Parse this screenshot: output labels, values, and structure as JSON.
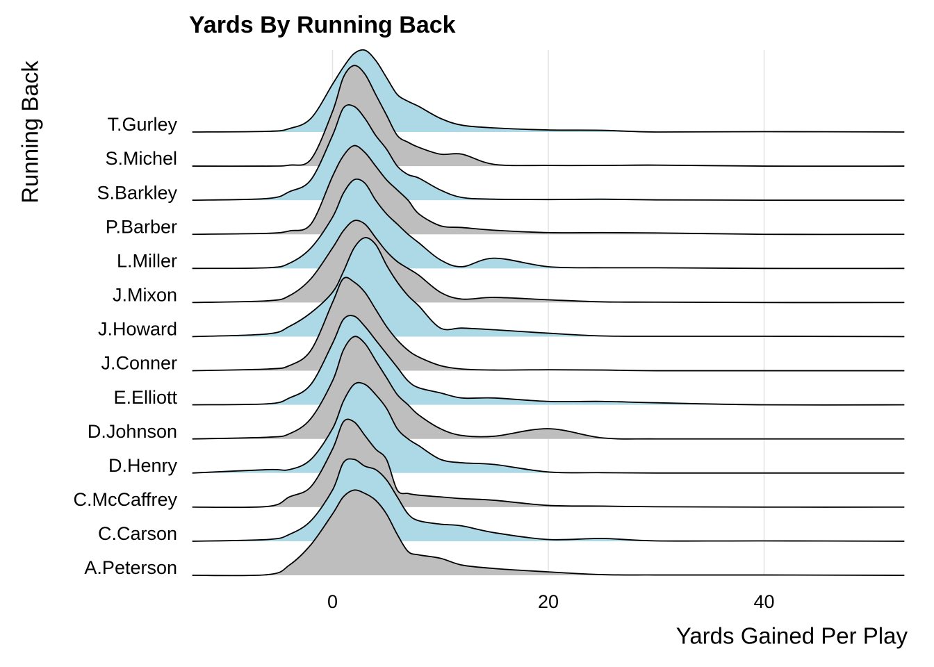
{
  "chart_data": {
    "type": "ridgeline",
    "title": "Yards By Running Back",
    "xlabel": "Yards Gained Per Play",
    "ylabel": "Running Back",
    "x": [
      -13,
      -6,
      -4,
      -2,
      0,
      1,
      2,
      3,
      4,
      5,
      6,
      7,
      8,
      10,
      12,
      15,
      20,
      25,
      30,
      40,
      53
    ],
    "xlim": [
      -13.3,
      53.3
    ],
    "xticks": [
      0,
      20,
      40
    ],
    "grid": true,
    "series": [
      {
        "name": "T.Gurley",
        "color": "#add8e6",
        "values": [
          0,
          0.02,
          0.1,
          0.4,
          1.4,
          1.9,
          2.3,
          2.4,
          2.1,
          1.6,
          1.1,
          0.9,
          0.75,
          0.4,
          0.2,
          0.12,
          0.06,
          0.05,
          0,
          0.01,
          0
        ]
      },
      {
        "name": "S.Michel",
        "color": "#bebebe",
        "values": [
          0,
          0,
          0.03,
          0.2,
          1.6,
          2.6,
          2.95,
          2.7,
          2.1,
          1.5,
          0.9,
          0.7,
          0.55,
          0.35,
          0.35,
          0.05,
          0.02,
          0.02,
          0.03,
          0,
          0
        ]
      },
      {
        "name": "S.Barkley",
        "color": "#add8e6",
        "values": [
          0,
          0.05,
          0.25,
          0.6,
          1.9,
          2.7,
          2.75,
          2.4,
          1.9,
          1.5,
          1.0,
          0.75,
          0.65,
          0.3,
          0.08,
          0.03,
          0.02,
          0.03,
          0.01,
          0,
          0
        ]
      },
      {
        "name": "P.Barber",
        "color": "#bebebe",
        "values": [
          0,
          0.03,
          0.1,
          0.3,
          1.7,
          2.3,
          2.6,
          2.4,
          2.0,
          1.6,
          1.3,
          1.0,
          0.6,
          0.25,
          0.2,
          0.12,
          0.05,
          0.05,
          0.04,
          0,
          0
        ]
      },
      {
        "name": "L.Miller",
        "color": "#add8e6",
        "values": [
          0,
          0.02,
          0.15,
          0.6,
          1.5,
          2.2,
          2.6,
          2.5,
          2.0,
          1.6,
          1.3,
          1.0,
          0.75,
          0.25,
          0.05,
          0.3,
          0.05,
          0.02,
          0.02,
          0,
          0
        ]
      },
      {
        "name": "J.Mixon",
        "color": "#bebebe",
        "values": [
          0,
          0.05,
          0.2,
          0.7,
          1.6,
          2.1,
          2.4,
          2.3,
          1.9,
          1.5,
          1.2,
          1.0,
          0.8,
          0.3,
          0.1,
          0.15,
          0.08,
          0.02,
          0.01,
          0,
          0
        ]
      },
      {
        "name": "J.Howard",
        "color": "#add8e6",
        "values": [
          0,
          0.08,
          0.3,
          0.7,
          1.3,
          1.9,
          2.6,
          2.9,
          2.7,
          2.1,
          1.6,
          1.2,
          0.9,
          0.25,
          0.25,
          0.2,
          0.1,
          0.02,
          0.01,
          0.01,
          0
        ]
      },
      {
        "name": "J.Conner",
        "color": "#bebebe",
        "values": [
          0,
          0.05,
          0.15,
          0.6,
          2.0,
          2.7,
          2.6,
          2.3,
          1.8,
          1.3,
          0.9,
          0.6,
          0.4,
          0.15,
          0.05,
          0.02,
          0.03,
          0.02,
          0,
          0,
          0
        ]
      },
      {
        "name": "E.Elliott",
        "color": "#add8e6",
        "values": [
          0,
          0.03,
          0.2,
          0.6,
          1.8,
          2.5,
          2.6,
          2.3,
          1.9,
          1.5,
          1.1,
          0.7,
          0.5,
          0.35,
          0.2,
          0.2,
          0.1,
          0.1,
          0.06,
          0,
          0
        ]
      },
      {
        "name": "D.Johnson",
        "color": "#bebebe",
        "values": [
          0,
          0.05,
          0.15,
          0.6,
          1.7,
          2.6,
          3.0,
          2.8,
          2.3,
          1.8,
          1.3,
          1.0,
          0.7,
          0.3,
          0.1,
          0.08,
          0.3,
          0.03,
          0,
          0,
          0
        ]
      },
      {
        "name": "D.Henry",
        "color": "#add8e6",
        "values": [
          0,
          0.1,
          0.1,
          0.4,
          1.3,
          2.1,
          2.6,
          2.6,
          2.3,
          1.9,
          1.3,
          1.0,
          0.8,
          0.4,
          0.3,
          0.25,
          0.03,
          0.01,
          0,
          0,
          0
        ]
      },
      {
        "name": "C.McCaffrey",
        "color": "#bebebe",
        "values": [
          0,
          0.02,
          0.3,
          0.6,
          1.7,
          2.5,
          2.5,
          2.1,
          1.7,
          1.4,
          0.5,
          0.4,
          0.35,
          0.3,
          0.25,
          0.2,
          0.05,
          0.03,
          0.01,
          0,
          0
        ]
      },
      {
        "name": "C.Carson",
        "color": "#add8e6",
        "values": [
          0,
          0.05,
          0.2,
          0.6,
          1.5,
          2.3,
          2.4,
          2.2,
          2.1,
          1.8,
          1.3,
          0.8,
          0.6,
          0.5,
          0.45,
          0.25,
          0.05,
          0.08,
          0.01,
          0.01,
          0
        ]
      },
      {
        "name": "A.Peterson",
        "color": "#bebebe",
        "values": [
          0,
          0.02,
          0.3,
          0.9,
          1.8,
          2.3,
          2.5,
          2.4,
          2.2,
          1.8,
          1.2,
          0.7,
          0.6,
          0.5,
          0.3,
          0.2,
          0.1,
          0.02,
          0.01,
          0.01,
          0
        ]
      }
    ]
  }
}
